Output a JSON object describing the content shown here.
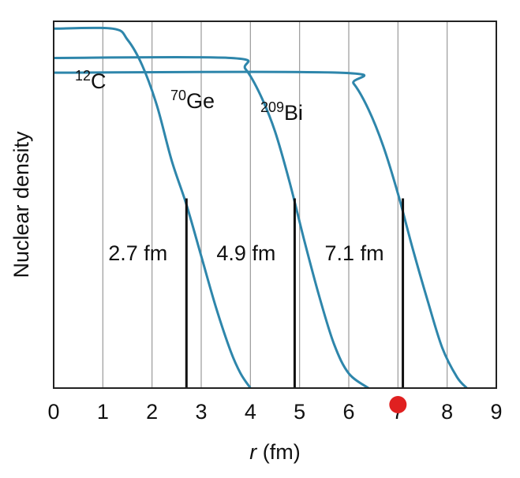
{
  "chart_data": {
    "type": "line",
    "xlabel_var": "r",
    "xlabel_unit": " (fm)",
    "ylabel": "Nuclear density",
    "xlim": [
      0,
      9
    ],
    "ylim": [
      0,
      1.0
    ],
    "xticks": [
      "0",
      "1",
      "2",
      "3",
      "4",
      "5",
      "6",
      "7",
      "8",
      "9"
    ],
    "grid": "vertical",
    "series": [
      {
        "name_mass": "12",
        "name_symbol": "C",
        "radius_label": "2.7 fm",
        "radius": 2.7,
        "plateau": 0.98,
        "color": "#2e86ab",
        "x": [
          0,
          1.2,
          1.5,
          1.8,
          2.1,
          2.4,
          2.7,
          3.0,
          3.3,
          3.6,
          3.8,
          4.0
        ],
        "y": [
          0.98,
          0.98,
          0.95,
          0.88,
          0.77,
          0.62,
          0.5,
          0.36,
          0.22,
          0.1,
          0.04,
          0.0
        ]
      },
      {
        "name_mass": "70",
        "name_symbol": "Ge",
        "radius_label": "4.9 fm",
        "radius": 4.9,
        "plateau": 0.9,
        "color": "#2e86ab",
        "x": [
          0,
          3.6,
          3.9,
          4.2,
          4.5,
          4.8,
          5.1,
          5.4,
          5.7,
          6.0,
          6.4
        ],
        "y": [
          0.9,
          0.9,
          0.87,
          0.8,
          0.7,
          0.56,
          0.4,
          0.25,
          0.12,
          0.04,
          0.0
        ]
      },
      {
        "name_mass": "209",
        "name_symbol": "Bi",
        "radius_label": "7.1 fm",
        "radius": 7.1,
        "plateau": 0.86,
        "color": "#2e86ab",
        "x": [
          0,
          5.8,
          6.1,
          6.4,
          6.7,
          7.0,
          7.3,
          7.6,
          7.9,
          8.2,
          8.4
        ],
        "y": [
          0.86,
          0.86,
          0.83,
          0.76,
          0.66,
          0.53,
          0.38,
          0.24,
          0.11,
          0.03,
          0.0
        ]
      }
    ],
    "marker": {
      "x": 7,
      "color": "#e02020"
    }
  }
}
